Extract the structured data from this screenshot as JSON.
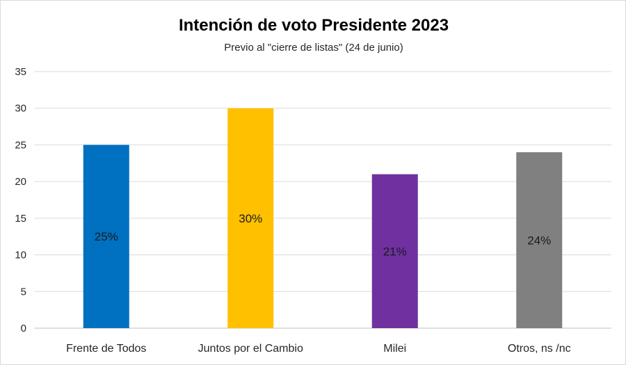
{
  "chart_data": {
    "type": "bar",
    "title": "Intención de voto Presidente 2023",
    "subtitle": "Previo al \"cierre de listas\" (24 de junio)",
    "categories": [
      "Frente de Todos",
      "Juntos por el Cambio",
      "Milei",
      "Otros, ns /nc"
    ],
    "values": [
      25,
      30,
      21,
      24
    ],
    "data_labels": [
      "25%",
      "30%",
      "21%",
      "24%"
    ],
    "colors": [
      "#0070C0",
      "#FFC000",
      "#7030A0",
      "#808080"
    ],
    "ylim": [
      0,
      35
    ],
    "yticks": [
      0,
      5,
      10,
      15,
      20,
      25,
      30,
      35
    ],
    "grid": true,
    "legend": "none"
  }
}
